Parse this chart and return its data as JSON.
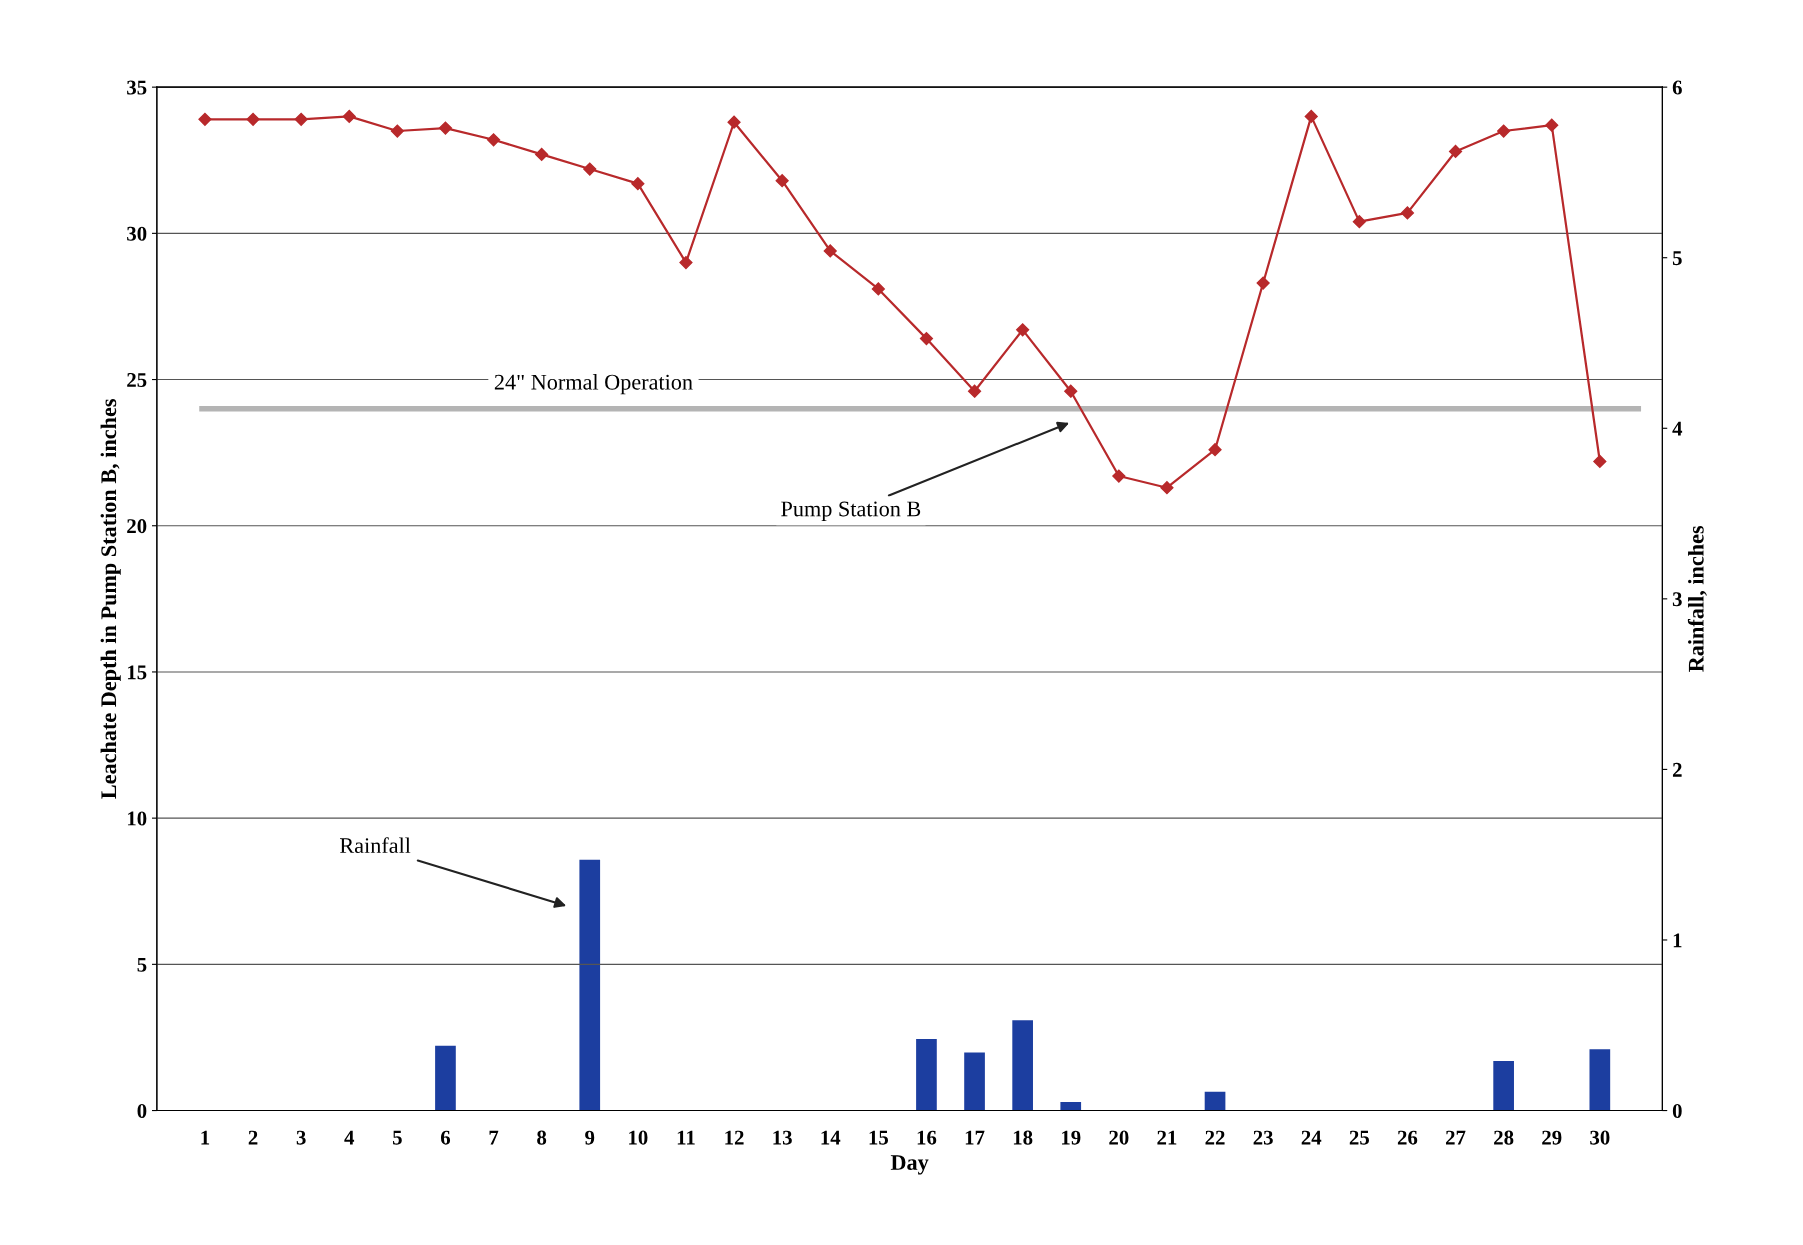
{
  "chart_data": {
    "type": "line",
    "xlabel": "Day",
    "ylabel": "Leachate Depth in Pump Station B, inches",
    "y2label": "Rainfall, inches",
    "x": [
      1,
      2,
      3,
      4,
      5,
      6,
      7,
      8,
      9,
      10,
      11,
      12,
      13,
      14,
      15,
      16,
      17,
      18,
      19,
      20,
      21,
      22,
      23,
      24,
      25,
      26,
      27,
      28,
      29,
      30
    ],
    "xlim": [
      0,
      31.3
    ],
    "xticks": [
      1,
      2,
      3,
      4,
      5,
      6,
      7,
      8,
      9,
      10,
      11,
      12,
      13,
      14,
      15,
      16,
      17,
      18,
      19,
      20,
      21,
      22,
      23,
      24,
      25,
      26,
      27,
      28,
      29,
      30
    ],
    "ylim": [
      0,
      35
    ],
    "yticks": [
      0,
      5,
      10,
      15,
      20,
      25,
      30,
      35
    ],
    "y2lim": [
      0,
      6
    ],
    "y2ticks": [
      0,
      1,
      2,
      3,
      4,
      5,
      6
    ],
    "grid": "y",
    "series": [
      {
        "type": "bar",
        "axis": "y2",
        "color": "#1c3ea0",
        "values": [
          0,
          0,
          0,
          0,
          0,
          0.38,
          0,
          0,
          1.47,
          0,
          0,
          0,
          0,
          0,
          0,
          0.42,
          0.34,
          0.53,
          0.05,
          0,
          0,
          0.11,
          0,
          0,
          0,
          0,
          0,
          0.29,
          0,
          0.36
        ]
      },
      {
        "axis": "y",
        "color": "#b8292b",
        "marker": "diamond",
        "line_style": "solid",
        "values": [
          33.9,
          33.9,
          33.9,
          34.0,
          33.5,
          33.6,
          33.2,
          32.7,
          32.2,
          31.7,
          29.0,
          33.8,
          31.8,
          29.4,
          28.1,
          26.4,
          24.6,
          26.7,
          24.6,
          21.7,
          21.3,
          22.6,
          28.3,
          34.0,
          30.4,
          30.7,
          32.8,
          33.5,
          33.7,
          22.2
        ]
      }
    ],
    "ref_lines": [
      {
        "axis": "y",
        "value": 24,
        "label": "24\" Normal Operation",
        "color": "#b4b4b4"
      }
    ],
    "annotations": [
      "Pump Station B",
      "Rainfall"
    ]
  }
}
